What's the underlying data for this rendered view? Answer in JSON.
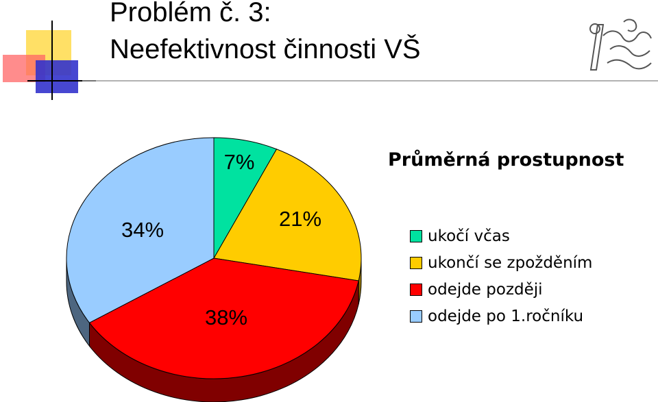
{
  "slide": {
    "title_line1": "Problém č. 3:",
    "title_line2": "Neefektivnost činnosti VŠ"
  },
  "chart_data": {
    "type": "pie",
    "title": "Průměrná prostupnost",
    "categories": [
      "ukočí včas",
      "ukončí se zpožděním",
      "odejde později",
      "odejde po 1.ročníku"
    ],
    "values": [
      7,
      21,
      38,
      34
    ],
    "labels": [
      "7%",
      "21%",
      "38%",
      "34%"
    ],
    "colors": [
      "#00E2A0",
      "#FFCC00",
      "#FF0000",
      "#99CCFF"
    ],
    "side_colors": [
      "#008060",
      "#997A00",
      "#800000",
      "#4D6680"
    ],
    "legend_position": "right",
    "three_d": true
  }
}
